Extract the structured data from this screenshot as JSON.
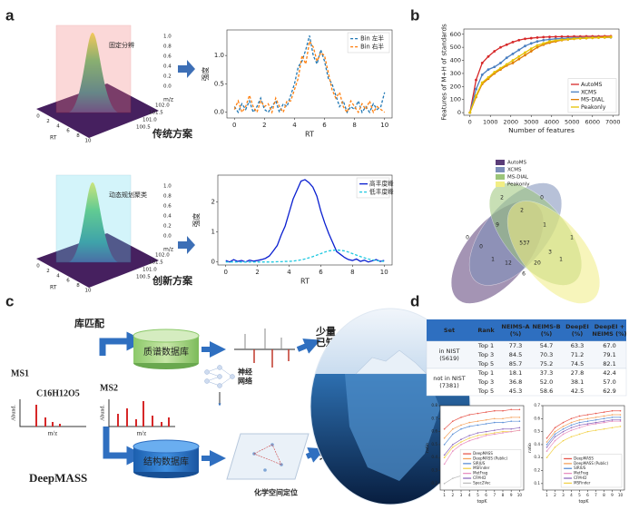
{
  "panel_labels": [
    "a",
    "b",
    "c",
    "d"
  ],
  "panel_a": {
    "box_top": "固定分辨",
    "box_bottom": "动态规划聚类",
    "traditional": "传统方案",
    "innovative": "创新方案",
    "rt_label": "RT",
    "rt_ticks": [
      "0",
      "2",
      "4",
      "6",
      "8",
      "10"
    ],
    "mz_label": "m/z",
    "mz_ticks": [
      "100.5",
      "101.0",
      "101.5",
      "102.0"
    ],
    "z_ticks": [
      "0.0",
      "0.2",
      "0.4",
      "0.6",
      "0.8",
      "1.0"
    ]
  },
  "venn": {
    "sets": [
      "AutoMS",
      "XCMS",
      "MS-DIAL",
      "Peakonly"
    ],
    "colors": [
      "#5b3d78",
      "#7d8fba",
      "#9cc57a",
      "#f2ee84"
    ],
    "counts": [
      2,
      0,
      2,
      0,
      9,
      1,
      1,
      0,
      537,
      3,
      1,
      1,
      12,
      20,
      6
    ]
  },
  "panel_c": {
    "library_matching": "库匹配",
    "ms_database": "质谱数据库",
    "few_known": [
      "少量",
      "已知"
    ],
    "ms1": "MS1",
    "formula": "C16H12O5",
    "ms2": "MS2",
    "abund": "Abund.",
    "mz": "m/z",
    "deepmass": "DeepMASS",
    "structure_database": "结构数据库",
    "neural_network": [
      "神经",
      "网络"
    ],
    "chem_space": "化学空间定位",
    "mine_unknown": [
      "挖掘",
      "未知"
    ]
  },
  "table": {
    "header": [
      [
        "Set"
      ],
      [
        "Rank"
      ],
      [
        "NEIMS-A",
        "(%)"
      ],
      [
        "NEIMS-B",
        "(%)"
      ],
      [
        "DeepEI",
        "(%)"
      ],
      [
        "DeepEI +",
        "NEIMS (%)"
      ]
    ],
    "groups": [
      {
        "set": [
          "in NIST",
          "(5619)"
        ],
        "rows": [
          [
            "Top 1",
            "77.3",
            "54.7",
            "63.3",
            "67.0"
          ],
          [
            "Top 3",
            "84.5",
            "70.3",
            "71.2",
            "79.1"
          ],
          [
            "Top 5",
            "85.7",
            "75.2",
            "74.5",
            "82.1"
          ]
        ]
      },
      {
        "set": [
          "not in NIST",
          "(7381)"
        ],
        "rows": [
          [
            "Top 1",
            "18.1",
            "37.3",
            "27.8",
            "42.4"
          ],
          [
            "Top 3",
            "36.8",
            "52.0",
            "38.1",
            "57.0"
          ],
          [
            "Top 5",
            "45.3",
            "58.6",
            "42.5",
            "62.9"
          ]
        ]
      }
    ]
  },
  "chart_data": [
    {
      "type": "line",
      "xlabel": "RT",
      "ylabel": "强度",
      "x": [
        0,
        0.25,
        0.5,
        0.75,
        1,
        1.25,
        1.5,
        1.75,
        2,
        2.25,
        2.5,
        2.75,
        3,
        3.25,
        3.5,
        3.75,
        4,
        4.25,
        4.5,
        4.75,
        5,
        5.25,
        5.5,
        5.75,
        6,
        6.25,
        6.5,
        6.75,
        7,
        7.25,
        7.5,
        7.75,
        8,
        8.25,
        8.5,
        8.75,
        9,
        9.25,
        9.5,
        9.75,
        10
      ],
      "xlim": [
        -0.5,
        10.5
      ],
      "xticks": [
        0,
        2,
        4,
        6,
        8,
        10
      ],
      "ylim": [
        -0.1,
        1.45
      ],
      "yticks": [
        {
          "value": 0,
          "label": "0.0"
        },
        0.5,
        {
          "value": 1,
          "label": "1.0"
        }
      ],
      "legend": "upper right",
      "markers": false,
      "series": [
        {
          "name": "Bin 左半",
          "color": "#1f77b4",
          "dash": true,
          "values": [
            0.1,
            0.0,
            0.15,
            0.05,
            0.2,
            0.0,
            0.1,
            0.25,
            0.05,
            0.0,
            0.1,
            0.2,
            0.0,
            0.15,
            0.1,
            0.3,
            0.5,
            0.8,
            0.9,
            1.1,
            1.35,
            1.0,
            0.85,
            1.1,
            0.9,
            0.6,
            0.5,
            0.3,
            0.1,
            0.2,
            0.0,
            0.1,
            0.05,
            0.2,
            0.0,
            0.1,
            0.0,
            0.15,
            0.05,
            0.1,
            0.35
          ]
        },
        {
          "name": "Bin 右半",
          "color": "#ff7f0e",
          "dash": true,
          "values": [
            0.05,
            0.2,
            0.0,
            0.1,
            0.3,
            0.1,
            0.0,
            0.2,
            0.1,
            0.15,
            0.0,
            0.25,
            0.1,
            0.0,
            0.2,
            0.2,
            0.4,
            0.6,
            1.0,
            0.85,
            1.25,
            1.15,
            0.9,
            1.05,
            1.0,
            0.7,
            0.4,
            0.25,
            0.35,
            0.1,
            0.0,
            0.2,
            0.1,
            0.0,
            0.15,
            0.05,
            0.2,
            0.0,
            0.1,
            0.05,
            0.0
          ]
        }
      ]
    },
    {
      "type": "line",
      "xlabel": "RT",
      "ylabel": "强度",
      "x": [
        0,
        0.25,
        0.5,
        0.75,
        1,
        1.25,
        1.5,
        1.75,
        2,
        2.25,
        2.5,
        2.75,
        3,
        3.25,
        3.5,
        3.75,
        4,
        4.25,
        4.5,
        4.75,
        5,
        5.25,
        5.5,
        5.75,
        6,
        6.25,
        6.5,
        6.75,
        7,
        7.25,
        7.5,
        7.75,
        8,
        8.25,
        8.5,
        8.75,
        9,
        9.25,
        9.5,
        9.75,
        10
      ],
      "xlim": [
        -0.5,
        10.5
      ],
      "xticks": [
        0,
        2,
        4,
        6,
        8,
        10
      ],
      "ylim": [
        -0.1,
        2.9
      ],
      "yticks": [
        0,
        1,
        2
      ],
      "legend": "upper right",
      "markers": false,
      "series": [
        {
          "name": "高丰度峰",
          "color": "#0a1fd0",
          "dash": false,
          "values": [
            0.05,
            0.0,
            0.08,
            0.02,
            0.05,
            0.0,
            0.06,
            0.03,
            0.05,
            0.08,
            0.12,
            0.2,
            0.37,
            0.55,
            0.9,
            1.2,
            1.65,
            2.1,
            2.4,
            2.7,
            2.75,
            2.65,
            2.5,
            2.2,
            1.7,
            1.3,
            0.95,
            0.65,
            0.35,
            0.25,
            0.15,
            0.08,
            0.05,
            0.1,
            0.02,
            0.06,
            0.0,
            0.04,
            0.08,
            0.02,
            0.05
          ]
        },
        {
          "name": "低丰度峰",
          "color": "#1ec8e0",
          "dash": true,
          "values": [
            0,
            0,
            0,
            0,
            0,
            0,
            0,
            0,
            0,
            0,
            0,
            0,
            0.0,
            0.01,
            0.01,
            0.02,
            0.02,
            0.03,
            0.05,
            0.07,
            0.1,
            0.14,
            0.18,
            0.23,
            0.28,
            0.33,
            0.37,
            0.39,
            0.4,
            0.39,
            0.37,
            0.33,
            0.28,
            0.23,
            0.18,
            0.14,
            0.1,
            0.07,
            0.05,
            0.03,
            0.02
          ]
        }
      ]
    },
    {
      "type": "line",
      "xlabel": "Number of features",
      "ylabel": "Features of M+H of standards",
      "x": [
        0,
        300,
        600,
        900,
        1200,
        1500,
        1800,
        2100,
        2400,
        2700,
        3000,
        3300,
        3600,
        3900,
        4200,
        4500,
        4800,
        5100,
        5400,
        5700,
        6000,
        6300,
        6600,
        6900
      ],
      "xlim": [
        -300,
        7300
      ],
      "xticks": [
        0,
        1000,
        2000,
        3000,
        4000,
        5000,
        6000,
        7000
      ],
      "ylim": [
        -20,
        640
      ],
      "yticks": [
        0,
        100,
        200,
        300,
        400,
        500,
        600
      ],
      "legend": "lower right",
      "markers": true,
      "series": [
        {
          "name": "AutoMS",
          "color": "#d62728",
          "dash": false,
          "values": [
            0,
            250,
            380,
            430,
            470,
            500,
            520,
            540,
            555,
            565,
            570,
            575,
            578,
            580,
            581,
            582,
            582,
            583,
            583,
            584,
            584,
            584,
            585,
            585
          ]
        },
        {
          "name": "XCMS",
          "color": "#4a7fc1",
          "dash": false,
          "values": [
            0,
            180,
            290,
            330,
            350,
            380,
            420,
            450,
            480,
            510,
            530,
            545,
            555,
            560,
            565,
            568,
            570,
            572,
            573,
            574,
            575,
            576,
            576,
            577
          ]
        },
        {
          "name": "MS-DIAL",
          "color": "#e07b00",
          "dash": false,
          "values": [
            0,
            120,
            220,
            260,
            300,
            330,
            360,
            380,
            410,
            440,
            470,
            500,
            520,
            535,
            545,
            555,
            560,
            565,
            568,
            570,
            572,
            574,
            576,
            578
          ]
        },
        {
          "name": "Peakonly",
          "color": "#e6c200",
          "dash": false,
          "values": [
            0,
            130,
            230,
            270,
            310,
            340,
            370,
            400,
            430,
            460,
            490,
            515,
            530,
            545,
            552,
            558,
            562,
            566,
            569,
            571,
            573,
            575,
            577,
            580
          ]
        }
      ]
    },
    {
      "type": "line",
      "xlabel": "topK",
      "ylabel": "ratio",
      "x": [
        1,
        2,
        3,
        4,
        5,
        6,
        7,
        8,
        9,
        10
      ],
      "xlim": [
        0.5,
        10.5
      ],
      "xticks": [
        1,
        2,
        3,
        4,
        5,
        6,
        7,
        8,
        9,
        10
      ],
      "ylim": [
        0.15,
        0.8
      ],
      "yticks": [
        0.2,
        0.3,
        0.4,
        0.5,
        0.6,
        0.7,
        0.8
      ],
      "legend": "lower right",
      "markers": true,
      "series": [
        {
          "name": "DeepMASS",
          "color": "#e8594f",
          "dash": false,
          "values": [
            0.62,
            0.68,
            0.71,
            0.73,
            0.74,
            0.75,
            0.76,
            0.76,
            0.77,
            0.77
          ]
        },
        {
          "name": "DeepMASS (Public)",
          "color": "#f5a25d",
          "dash": false,
          "values": [
            0.55,
            0.62,
            0.65,
            0.67,
            0.68,
            0.69,
            0.7,
            0.7,
            0.71,
            0.71
          ]
        },
        {
          "name": "SIRIUS",
          "color": "#5b8fd6",
          "dash": false,
          "values": [
            0.5,
            0.58,
            0.62,
            0.64,
            0.65,
            0.66,
            0.67,
            0.67,
            0.68,
            0.68
          ]
        },
        {
          "name": "MSFinder",
          "color": "#f2d24b",
          "dash": false,
          "values": [
            0.4,
            0.48,
            0.52,
            0.55,
            0.57,
            0.58,
            0.59,
            0.6,
            0.6,
            0.61
          ]
        },
        {
          "name": "MetFrag",
          "color": "#e88fc0",
          "dash": false,
          "values": [
            0.35,
            0.45,
            0.5,
            0.53,
            0.55,
            0.57,
            0.58,
            0.59,
            0.6,
            0.61
          ]
        },
        {
          "name": "CFM-ID",
          "color": "#8e6bbf",
          "dash": false,
          "values": [
            0.42,
            0.5,
            0.54,
            0.57,
            0.59,
            0.6,
            0.61,
            0.62,
            0.62,
            0.63
          ]
        },
        {
          "name": "Spec2Vec",
          "color": "#bdbdbd",
          "dash": false,
          "values": [
            0.2,
            0.24,
            0.26,
            0.27,
            0.28,
            0.28,
            0.29,
            0.29,
            0.3,
            0.3
          ]
        }
      ]
    },
    {
      "type": "line",
      "xlabel": "topK",
      "ylabel": "ratio",
      "x": [
        1,
        2,
        3,
        4,
        5,
        6,
        7,
        8,
        9,
        10
      ],
      "xlim": [
        0.5,
        10.5
      ],
      "xticks": [
        1,
        2,
        3,
        4,
        5,
        6,
        7,
        8,
        9,
        10
      ],
      "ylim": [
        0.05,
        0.7
      ],
      "yticks": [
        0.1,
        0.2,
        0.3,
        0.4,
        0.5,
        0.6,
        0.7
      ],
      "legend": "lower right",
      "markers": true,
      "series": [
        {
          "name": "DeepMASS",
          "color": "#e8594f",
          "dash": false,
          "values": [
            0.45,
            0.53,
            0.57,
            0.6,
            0.62,
            0.63,
            0.64,
            0.65,
            0.66,
            0.66
          ]
        },
        {
          "name": "DeepMASS (Public)",
          "color": "#f5a25d",
          "dash": false,
          "values": [
            0.42,
            0.5,
            0.54,
            0.57,
            0.59,
            0.6,
            0.61,
            0.62,
            0.63,
            0.63
          ]
        },
        {
          "name": "SIRIUS",
          "color": "#5b8fd6",
          "dash": false,
          "values": [
            0.4,
            0.48,
            0.52,
            0.55,
            0.57,
            0.58,
            0.59,
            0.6,
            0.61,
            0.61
          ]
        },
        {
          "name": "MetFrag",
          "color": "#e88fc0",
          "dash": false,
          "values": [
            0.35,
            0.43,
            0.48,
            0.51,
            0.53,
            0.55,
            0.56,
            0.57,
            0.58,
            0.58
          ]
        },
        {
          "name": "CFM-ID",
          "color": "#8e6bbf",
          "dash": false,
          "values": [
            0.38,
            0.46,
            0.5,
            0.53,
            0.55,
            0.56,
            0.57,
            0.58,
            0.59,
            0.59
          ]
        },
        {
          "name": "MSFinder",
          "color": "#f2d24b",
          "dash": false,
          "values": [
            0.3,
            0.38,
            0.43,
            0.46,
            0.48,
            0.5,
            0.51,
            0.52,
            0.53,
            0.54
          ]
        }
      ]
    }
  ]
}
